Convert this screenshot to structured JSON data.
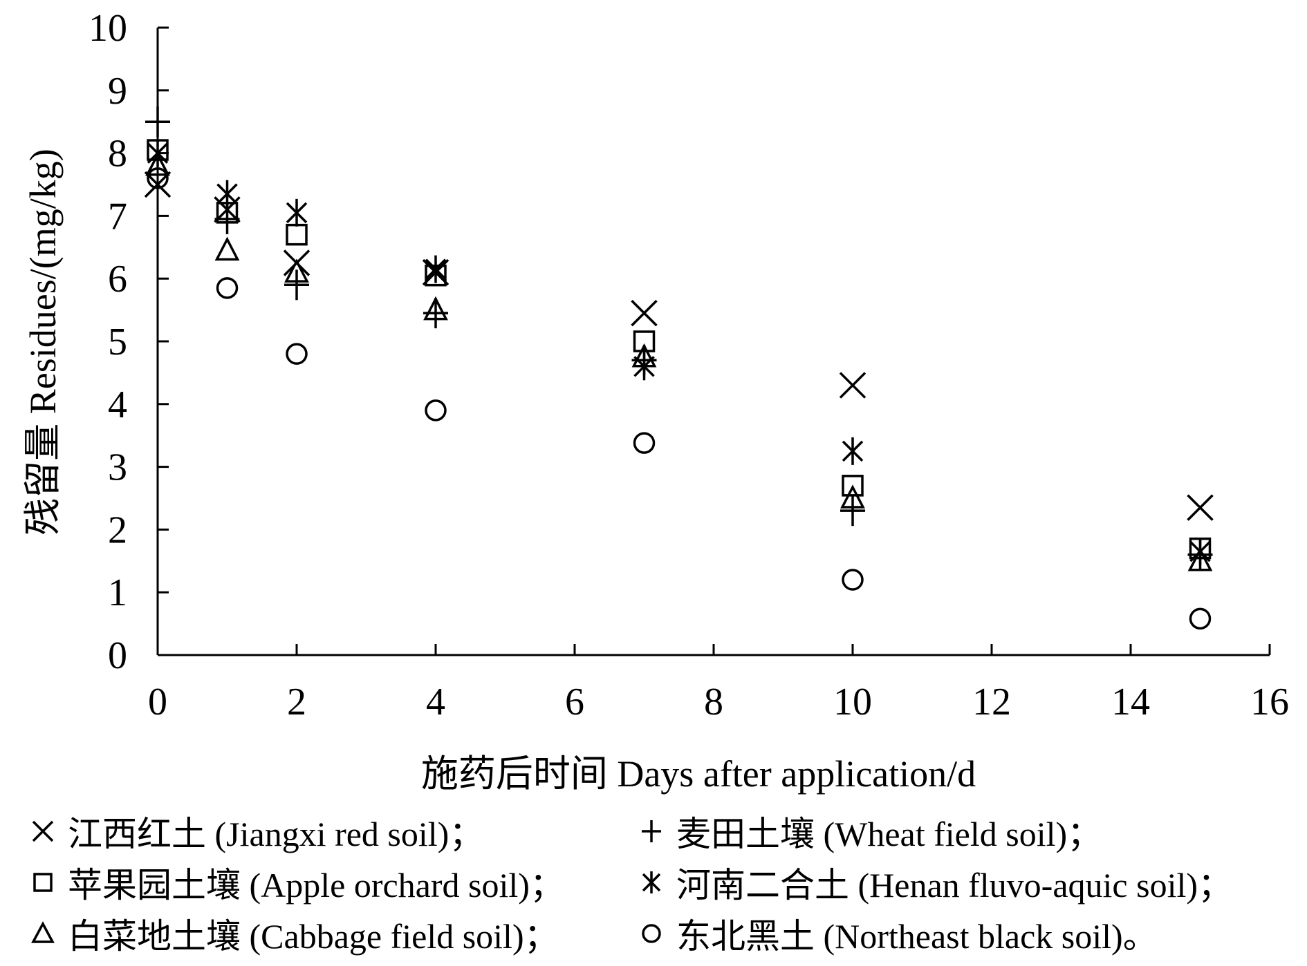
{
  "chart_data": {
    "type": "scatter",
    "title": "",
    "xlabel": "施药后时间 Days after application/d",
    "ylabel": "残留量 Residues/(mg/kg)",
    "xlim": [
      0,
      16
    ],
    "ylim": [
      0,
      10
    ],
    "xticks": [
      0,
      2,
      4,
      6,
      8,
      10,
      12,
      14,
      16
    ],
    "yticks": [
      0,
      1,
      2,
      3,
      4,
      5,
      6,
      7,
      8,
      9,
      10
    ],
    "grid": false,
    "legend_position": "bottom",
    "x": [
      0,
      1,
      2,
      4,
      7,
      10,
      15
    ],
    "series": [
      {
        "name": "江西红土 (Jiangxi red soil)；",
        "marker": "x",
        "values": [
          7.5,
          7.1,
          6.25,
          6.1,
          5.45,
          4.3,
          2.35
        ]
      },
      {
        "name": "麦田土壤 (Wheat field soil)；",
        "marker": "plus",
        "values": [
          8.5,
          6.95,
          5.9,
          5.45,
          4.7,
          2.3,
          1.6
        ]
      },
      {
        "name": "苹果园土壤 (Apple orchard soil)；",
        "marker": "square",
        "values": [
          8.05,
          7.05,
          6.7,
          6.05,
          5.0,
          2.7,
          1.7
        ]
      },
      {
        "name": "河南二合土 (Henan fluvo-aquic soil)；",
        "marker": "asterisk",
        "values": [
          8.0,
          7.35,
          7.05,
          6.15,
          4.6,
          3.25,
          1.65
        ]
      },
      {
        "name": "白菜地土壤 (Cabbage field soil)；",
        "marker": "triangle",
        "values": [
          7.8,
          6.45,
          6.1,
          5.5,
          4.75,
          2.5,
          1.5
        ]
      },
      {
        "name": "东北黑土 (Northeast black soil)。",
        "marker": "circle",
        "values": [
          7.6,
          5.85,
          4.8,
          3.9,
          3.38,
          1.2,
          0.58
        ]
      }
    ]
  }
}
